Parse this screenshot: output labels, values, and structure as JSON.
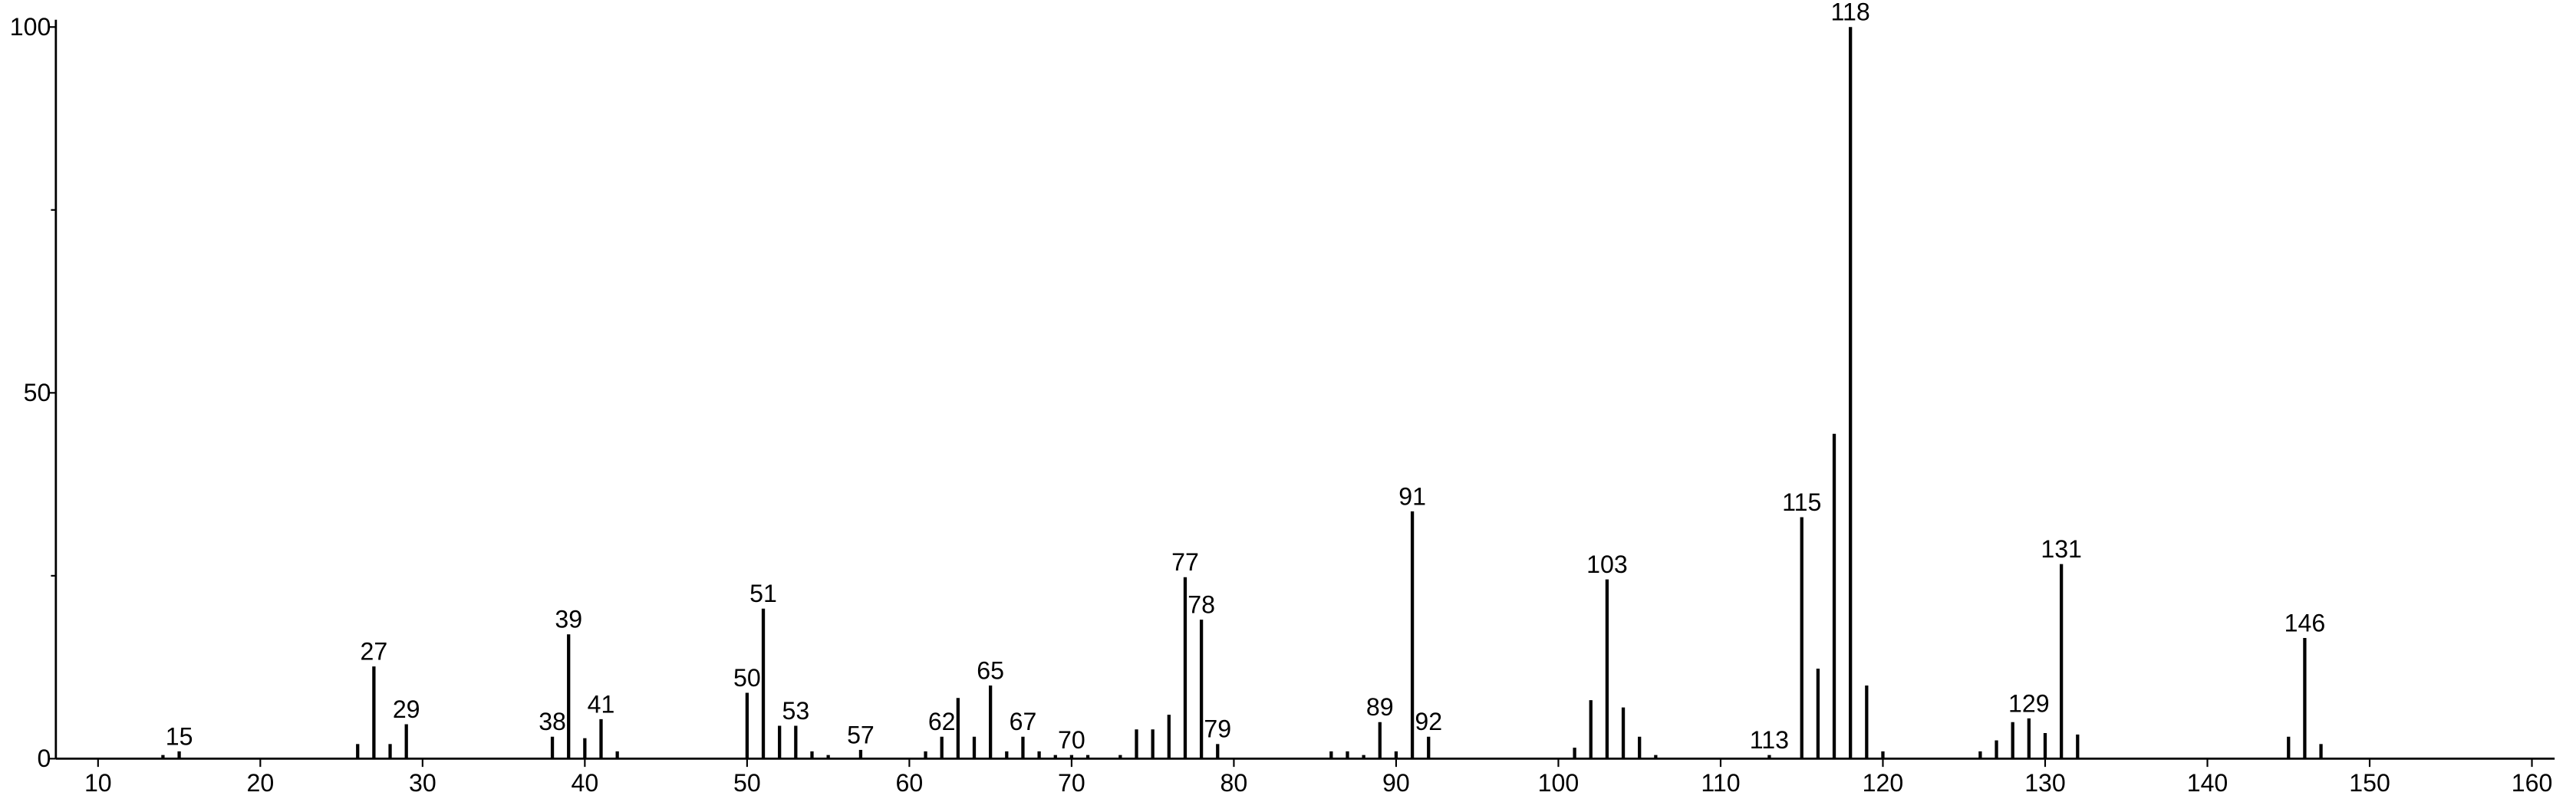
{
  "chart_data": {
    "type": "stick",
    "x": [
      14,
      15,
      26,
      27,
      28,
      29,
      38,
      39,
      40,
      41,
      42,
      50,
      51,
      52,
      53,
      54,
      55,
      57,
      61,
      62,
      63,
      64,
      65,
      66,
      67,
      68,
      69,
      70,
      71,
      73,
      74,
      75,
      76,
      77,
      78,
      79,
      86,
      87,
      88,
      89,
      90,
      91,
      92,
      101,
      102,
      103,
      104,
      105,
      106,
      113,
      115,
      116,
      117,
      118,
      119,
      120,
      126,
      127,
      128,
      129,
      130,
      131,
      132,
      145,
      146,
      147
    ],
    "values": [
      0.5,
      1,
      2,
      12.6,
      2,
      4.7,
      3,
      17,
      2.8,
      5.4,
      1,
      9,
      20.5,
      4.5,
      4.5,
      1,
      0.5,
      1.2,
      1,
      3,
      8.3,
      3,
      10,
      1,
      3,
      1,
      0.5,
      0.5,
      0.5,
      0.5,
      4,
      4,
      6,
      24.8,
      19,
      2,
      1,
      1,
      0.5,
      5,
      1,
      33.8,
      3,
      1.5,
      8,
      24.5,
      7,
      3,
      0.5,
      0.5,
      33,
      12.3,
      44.4,
      100,
      10,
      1,
      1,
      2.5,
      5,
      5.5,
      3.5,
      26.6,
      3.3,
      3,
      16.5,
      2
    ],
    "labeled": [
      false,
      true,
      false,
      true,
      false,
      true,
      true,
      true,
      false,
      true,
      false,
      true,
      true,
      false,
      true,
      false,
      false,
      true,
      false,
      true,
      false,
      false,
      true,
      false,
      true,
      false,
      false,
      true,
      false,
      false,
      false,
      false,
      false,
      true,
      true,
      true,
      false,
      false,
      false,
      true,
      false,
      true,
      true,
      false,
      false,
      true,
      false,
      false,
      false,
      true,
      true,
      false,
      false,
      true,
      false,
      false,
      false,
      false,
      false,
      true,
      false,
      true,
      false,
      false,
      true,
      false
    ],
    "color": "#000000",
    "xlim": [
      7.4,
      161.4
    ],
    "ylim": [
      0,
      101
    ],
    "xticks": [
      10,
      20,
      30,
      40,
      50,
      60,
      70,
      80,
      90,
      100,
      110,
      120,
      130,
      140,
      150,
      160
    ],
    "yticks": [
      0,
      50,
      100
    ],
    "yminor_ticks": [
      25,
      75
    ]
  }
}
